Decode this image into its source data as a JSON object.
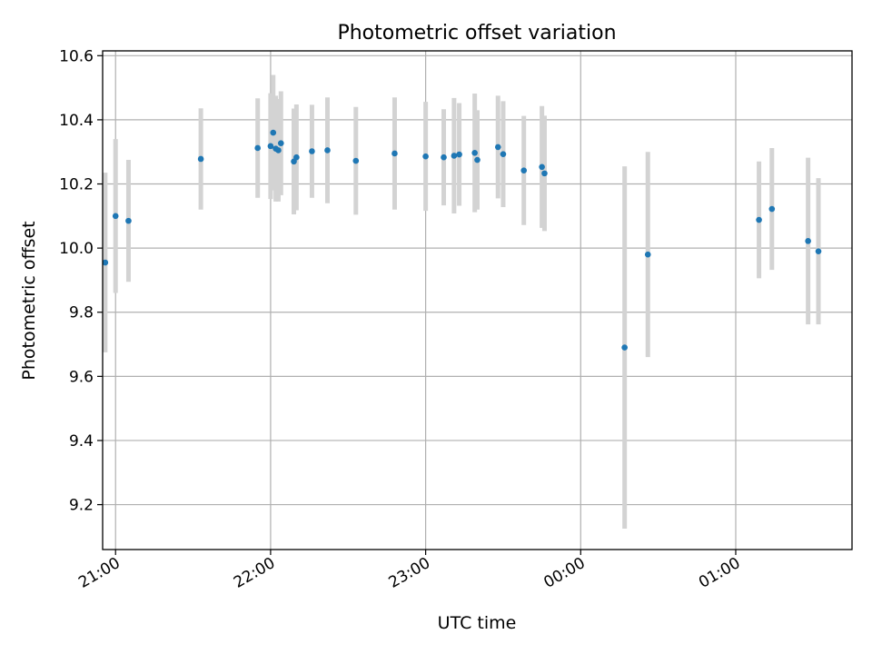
{
  "chart_data": {
    "type": "scatter",
    "title": "Photometric offset variation",
    "xlabel": "UTC time",
    "ylabel": "Photometric offset",
    "x_unit": "UTC time (HH:MM), points after 00:00 fall on the following day",
    "xlim": [
      "20:55",
      "01:45"
    ],
    "ylim": [
      9.06,
      10.615
    ],
    "xticks": [
      "21:00",
      "22:00",
      "23:00",
      "00:00",
      "01:00"
    ],
    "yticks": [
      "9.2",
      "9.4",
      "9.6",
      "9.8",
      "10.0",
      "10.2",
      "10.4",
      "10.6"
    ],
    "grid": true,
    "legend": "none",
    "marker_color": "#1f77b4",
    "errorbar_color": "#d3d3d3",
    "grid_color": "#b0b0b0",
    "points": [
      {
        "t": "20:56",
        "y": 9.955,
        "err": 0.28
      },
      {
        "t": "21:00",
        "y": 10.1,
        "err": 0.24
      },
      {
        "t": "21:05",
        "y": 10.085,
        "err": 0.19
      },
      {
        "t": "21:33",
        "y": 10.278,
        "err": 0.158
      },
      {
        "t": "21:55",
        "y": 10.312,
        "err": 0.155
      },
      {
        "t": "22:00",
        "y": 10.318,
        "err": 0.165
      },
      {
        "t": "22:01",
        "y": 10.36,
        "err": 0.18
      },
      {
        "t": "22:02",
        "y": 10.31,
        "err": 0.165
      },
      {
        "t": "22:03",
        "y": 10.305,
        "err": 0.16
      },
      {
        "t": "22:04",
        "y": 10.327,
        "err": 0.162
      },
      {
        "t": "22:09",
        "y": 10.27,
        "err": 0.165
      },
      {
        "t": "22:10",
        "y": 10.283,
        "err": 0.165
      },
      {
        "t": "22:16",
        "y": 10.302,
        "err": 0.145
      },
      {
        "t": "22:22",
        "y": 10.305,
        "err": 0.165
      },
      {
        "t": "22:33",
        "y": 10.272,
        "err": 0.168
      },
      {
        "t": "22:48",
        "y": 10.295,
        "err": 0.175
      },
      {
        "t": "23:00",
        "y": 10.286,
        "err": 0.17
      },
      {
        "t": "23:07",
        "y": 10.283,
        "err": 0.15
      },
      {
        "t": "23:11",
        "y": 10.288,
        "err": 0.18
      },
      {
        "t": "23:13",
        "y": 10.292,
        "err": 0.16
      },
      {
        "t": "23:19",
        "y": 10.297,
        "err": 0.185
      },
      {
        "t": "23:20",
        "y": 10.275,
        "err": 0.155
      },
      {
        "t": "23:28",
        "y": 10.315,
        "err": 0.16
      },
      {
        "t": "23:30",
        "y": 10.293,
        "err": 0.165
      },
      {
        "t": "23:38",
        "y": 10.242,
        "err": 0.17
      },
      {
        "t": "23:45",
        "y": 10.253,
        "err": 0.19
      },
      {
        "t": "23:46",
        "y": 10.233,
        "err": 0.18
      },
      {
        "t": "00:17",
        "y": 9.69,
        "err": 0.565
      },
      {
        "t": "00:26",
        "y": 9.98,
        "err": 0.32
      },
      {
        "t": "01:09",
        "y": 10.088,
        "err": 0.182
      },
      {
        "t": "01:14",
        "y": 10.122,
        "err": 0.19
      },
      {
        "t": "01:28",
        "y": 10.022,
        "err": 0.26
      },
      {
        "t": "01:32",
        "y": 9.99,
        "err": 0.228
      }
    ]
  }
}
